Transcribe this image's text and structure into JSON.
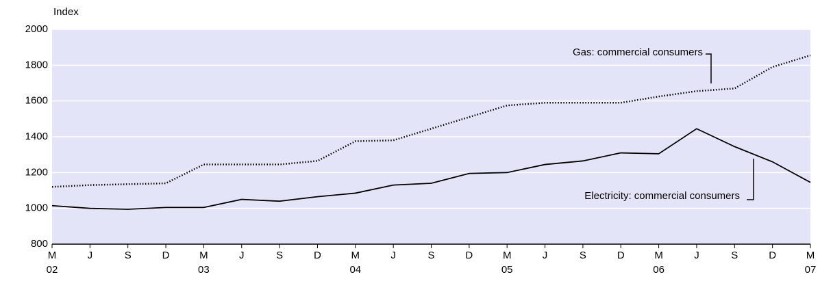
{
  "chart_data": {
    "type": "line",
    "y_label": "Index",
    "categories": [
      "M",
      "J",
      "S",
      "D",
      "M",
      "J",
      "S",
      "D",
      "M",
      "J",
      "S",
      "D",
      "M",
      "J",
      "S",
      "D",
      "M",
      "J",
      "S",
      "D",
      "M"
    ],
    "year_labels": [
      "02",
      null,
      null,
      null,
      "03",
      null,
      null,
      null,
      "04",
      null,
      null,
      null,
      "05",
      null,
      null,
      null,
      "06",
      null,
      null,
      null,
      "07"
    ],
    "series": [
      {
        "name": "Gas: commercial consumers",
        "color": "#000000",
        "style": "dotted",
        "values": [
          1120,
          1130,
          1135,
          1140,
          1245,
          1245,
          1245,
          1265,
          1375,
          1380,
          1445,
          1510,
          1575,
          1590,
          1590,
          1590,
          1625,
          1655,
          1670,
          1790,
          1855
        ]
      },
      {
        "name": "Electricity: commercial consumers",
        "color": "#000000",
        "style": "solid",
        "values": [
          1015,
          1000,
          995,
          1005,
          1005,
          1050,
          1040,
          1065,
          1085,
          1130,
          1140,
          1195,
          1200,
          1245,
          1265,
          1310,
          1305,
          1445,
          1345,
          1260,
          1145
        ]
      }
    ],
    "ylim": [
      800,
      2000
    ],
    "yticks": [
      800,
      1000,
      1200,
      1400,
      1600,
      1800,
      2000
    ],
    "grid": true,
    "background": "#e4e4f8"
  }
}
